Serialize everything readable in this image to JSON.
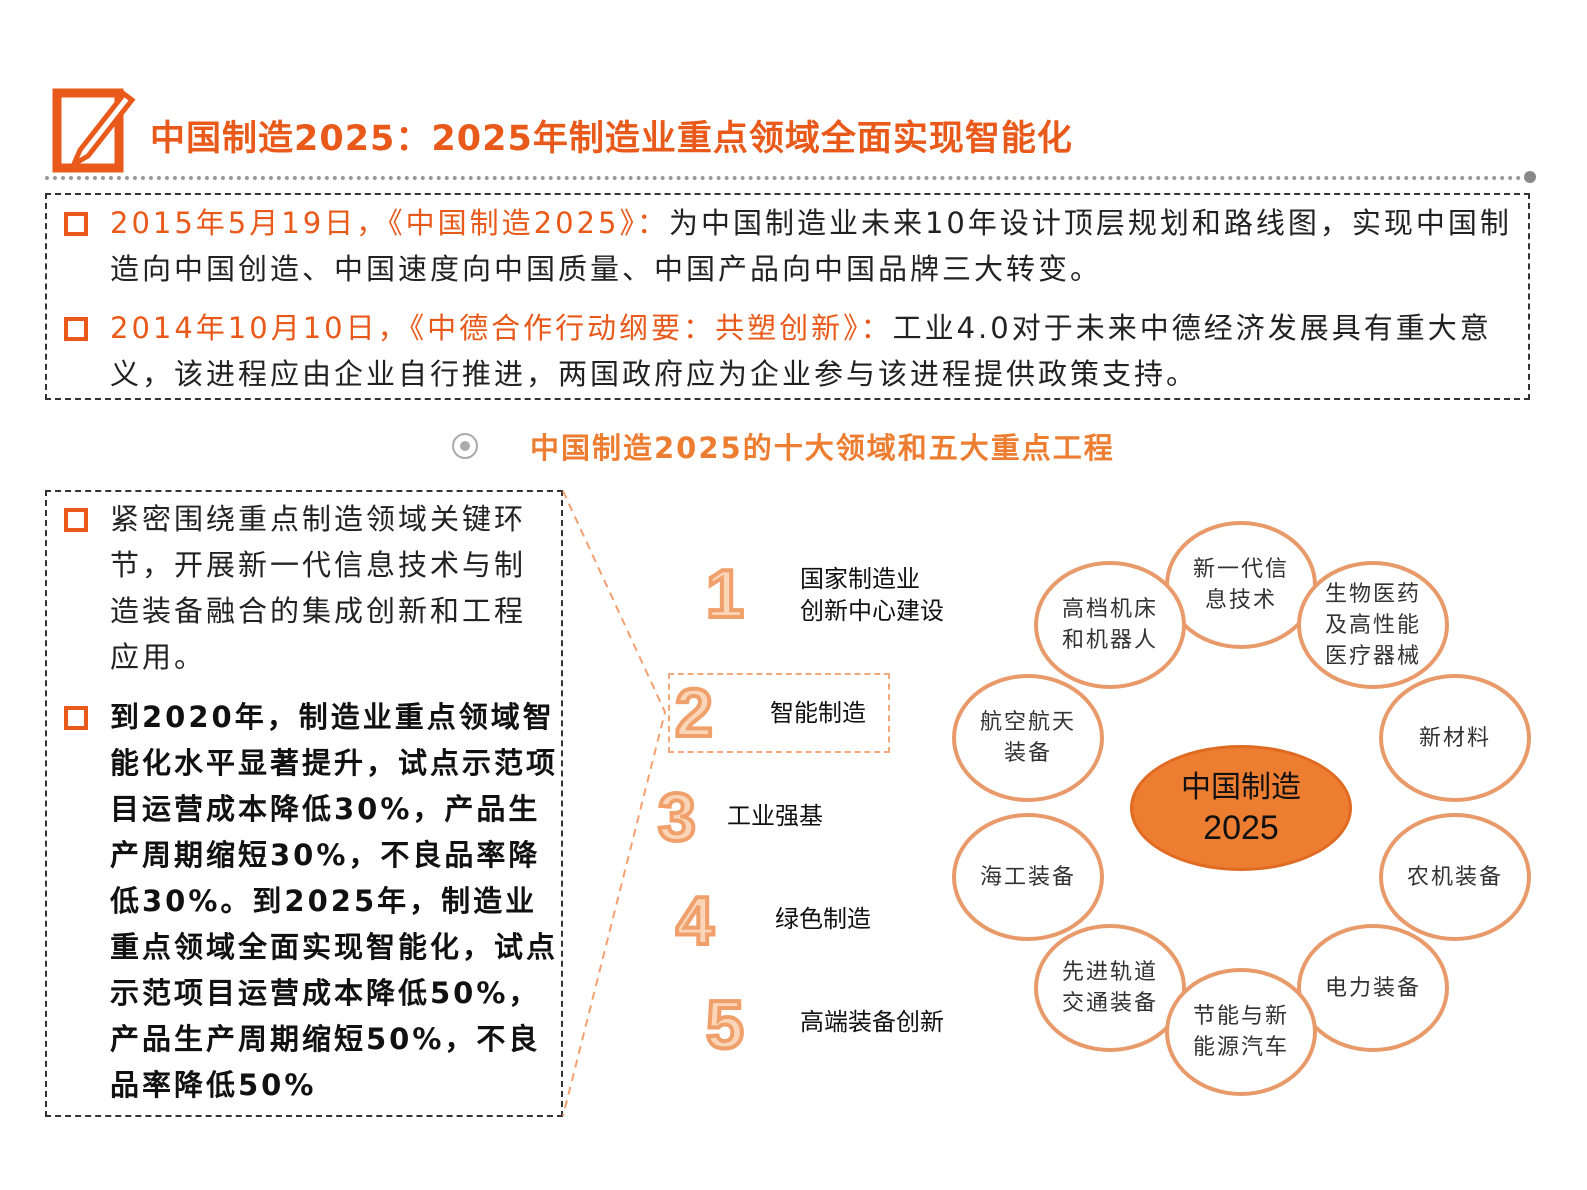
{
  "title": "中国制造2025：2025年制造业重点领域全面实现智能化",
  "top_items": [
    {
      "highlight": "2015年5月19日，《中国制造2025》：",
      "text": "为中国制造业未来10年设计顶层规划和路线图，实现中国制造向中国创造、中国速度向中国质量、中国产品向中国品牌三大转变。"
    },
    {
      "highlight": "2014年10月10日，《中德合作行动纲要：共塑创新》：",
      "text": "工业4.0对于未来中德经济发展具有重大意义，该进程应由企业自行推进，两国政府应为企业参与该进程提供政策支持。"
    }
  ],
  "subtitle": "中国制造2025的十大领域和五大重点工程",
  "left_items": [
    {
      "text": "紧密围绕重点制造领域关键环节，开展新一代信息技术与制造装备融合的集成创新和工程应用。"
    },
    {
      "text": "到2020年，制造业重点领域智能化水平显著提升，试点示范项目运营成本降低30%，产品生产周期缩短30%，不良品率降低30%。到2025年，制造业重点领域全面实现智能化，试点示范项目运营成本降低50%，产品生产周期缩短50%，不良品率降低50%"
    }
  ],
  "projects": [
    {
      "num": "1",
      "line1": "国家制造业",
      "line2": "创新中心建设"
    },
    {
      "num": "2",
      "line1": "智能制造",
      "line2": ""
    },
    {
      "num": "3",
      "line1": "工业强基",
      "line2": ""
    },
    {
      "num": "4",
      "line1": "绿色制造",
      "line2": ""
    },
    {
      "num": "5",
      "line1": "高端装备创新",
      "line2": ""
    }
  ],
  "center": {
    "line1": "中国制造",
    "line2": "2025"
  },
  "fields": [
    {
      "l1": "新一代信",
      "l2": "息技术"
    },
    {
      "l1": "高档机床",
      "l2": "和机器人"
    },
    {
      "l1": "生物医药",
      "l2": "及高性能",
      "l3": "医疗器械"
    },
    {
      "l1": "航空航天",
      "l2": "装备"
    },
    {
      "l1": "新材料"
    },
    {
      "l1": "海工装备"
    },
    {
      "l1": "农机装备"
    },
    {
      "l1": "先进轨道",
      "l2": "交通装备"
    },
    {
      "l1": "电力装备"
    },
    {
      "l1": "节能与新",
      "l2": "能源汽车"
    }
  ],
  "colors": {
    "accent": "#e8591a",
    "orange": "#ed7d31"
  }
}
